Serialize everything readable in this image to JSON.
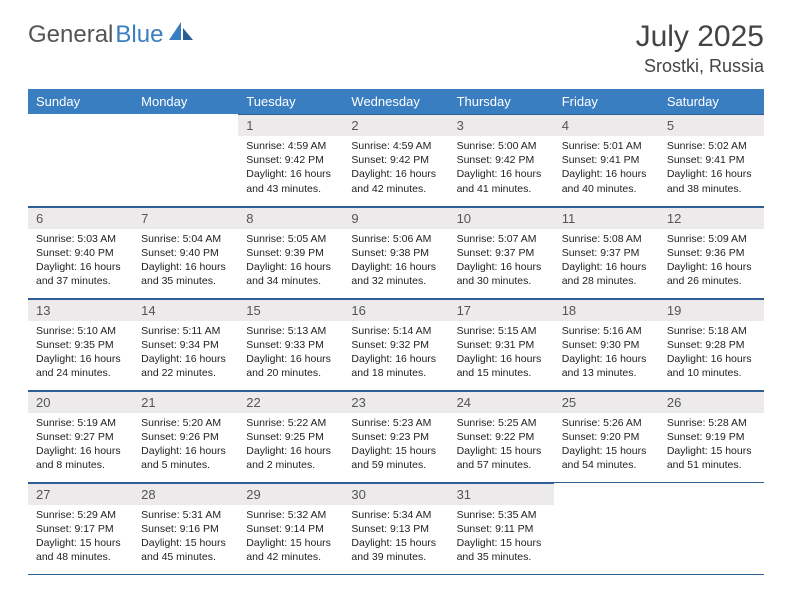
{
  "branding": {
    "first": "General",
    "second": "Blue"
  },
  "title": "July 2025",
  "location": "Srostki, Russia",
  "colors": {
    "header_bg": "#3a7ec2",
    "header_fg": "#ffffff",
    "daynum_bg": "#eceaea",
    "rule": "#2f5f95",
    "logo_gray": "#555555",
    "logo_blue": "#3a7ec2"
  },
  "weekdays": [
    "Sunday",
    "Monday",
    "Tuesday",
    "Wednesday",
    "Thursday",
    "Friday",
    "Saturday"
  ],
  "weeks": [
    [
      null,
      null,
      {
        "n": 1,
        "sr": "4:59 AM",
        "ss": "9:42 PM",
        "dh": 16,
        "dm": 43
      },
      {
        "n": 2,
        "sr": "4:59 AM",
        "ss": "9:42 PM",
        "dh": 16,
        "dm": 42
      },
      {
        "n": 3,
        "sr": "5:00 AM",
        "ss": "9:42 PM",
        "dh": 16,
        "dm": 41
      },
      {
        "n": 4,
        "sr": "5:01 AM",
        "ss": "9:41 PM",
        "dh": 16,
        "dm": 40
      },
      {
        "n": 5,
        "sr": "5:02 AM",
        "ss": "9:41 PM",
        "dh": 16,
        "dm": 38
      }
    ],
    [
      {
        "n": 6,
        "sr": "5:03 AM",
        "ss": "9:40 PM",
        "dh": 16,
        "dm": 37
      },
      {
        "n": 7,
        "sr": "5:04 AM",
        "ss": "9:40 PM",
        "dh": 16,
        "dm": 35
      },
      {
        "n": 8,
        "sr": "5:05 AM",
        "ss": "9:39 PM",
        "dh": 16,
        "dm": 34
      },
      {
        "n": 9,
        "sr": "5:06 AM",
        "ss": "9:38 PM",
        "dh": 16,
        "dm": 32
      },
      {
        "n": 10,
        "sr": "5:07 AM",
        "ss": "9:37 PM",
        "dh": 16,
        "dm": 30
      },
      {
        "n": 11,
        "sr": "5:08 AM",
        "ss": "9:37 PM",
        "dh": 16,
        "dm": 28
      },
      {
        "n": 12,
        "sr": "5:09 AM",
        "ss": "9:36 PM",
        "dh": 16,
        "dm": 26
      }
    ],
    [
      {
        "n": 13,
        "sr": "5:10 AM",
        "ss": "9:35 PM",
        "dh": 16,
        "dm": 24
      },
      {
        "n": 14,
        "sr": "5:11 AM",
        "ss": "9:34 PM",
        "dh": 16,
        "dm": 22
      },
      {
        "n": 15,
        "sr": "5:13 AM",
        "ss": "9:33 PM",
        "dh": 16,
        "dm": 20
      },
      {
        "n": 16,
        "sr": "5:14 AM",
        "ss": "9:32 PM",
        "dh": 16,
        "dm": 18
      },
      {
        "n": 17,
        "sr": "5:15 AM",
        "ss": "9:31 PM",
        "dh": 16,
        "dm": 15
      },
      {
        "n": 18,
        "sr": "5:16 AM",
        "ss": "9:30 PM",
        "dh": 16,
        "dm": 13
      },
      {
        "n": 19,
        "sr": "5:18 AM",
        "ss": "9:28 PM",
        "dh": 16,
        "dm": 10
      }
    ],
    [
      {
        "n": 20,
        "sr": "5:19 AM",
        "ss": "9:27 PM",
        "dh": 16,
        "dm": 8
      },
      {
        "n": 21,
        "sr": "5:20 AM",
        "ss": "9:26 PM",
        "dh": 16,
        "dm": 5
      },
      {
        "n": 22,
        "sr": "5:22 AM",
        "ss": "9:25 PM",
        "dh": 16,
        "dm": 2
      },
      {
        "n": 23,
        "sr": "5:23 AM",
        "ss": "9:23 PM",
        "dh": 15,
        "dm": 59
      },
      {
        "n": 24,
        "sr": "5:25 AM",
        "ss": "9:22 PM",
        "dh": 15,
        "dm": 57
      },
      {
        "n": 25,
        "sr": "5:26 AM",
        "ss": "9:20 PM",
        "dh": 15,
        "dm": 54
      },
      {
        "n": 26,
        "sr": "5:28 AM",
        "ss": "9:19 PM",
        "dh": 15,
        "dm": 51
      }
    ],
    [
      {
        "n": 27,
        "sr": "5:29 AM",
        "ss": "9:17 PM",
        "dh": 15,
        "dm": 48
      },
      {
        "n": 28,
        "sr": "5:31 AM",
        "ss": "9:16 PM",
        "dh": 15,
        "dm": 45
      },
      {
        "n": 29,
        "sr": "5:32 AM",
        "ss": "9:14 PM",
        "dh": 15,
        "dm": 42
      },
      {
        "n": 30,
        "sr": "5:34 AM",
        "ss": "9:13 PM",
        "dh": 15,
        "dm": 39
      },
      {
        "n": 31,
        "sr": "5:35 AM",
        "ss": "9:11 PM",
        "dh": 15,
        "dm": 35
      },
      null,
      null
    ]
  ]
}
